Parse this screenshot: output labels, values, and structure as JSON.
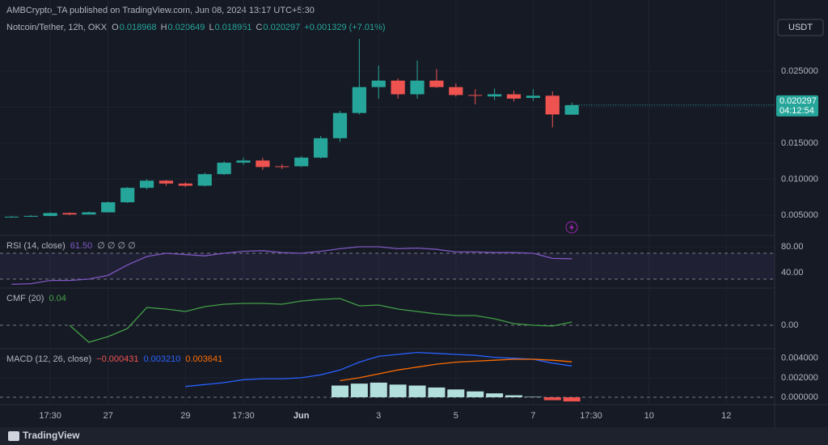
{
  "header": {
    "publisher": "AMBCrypto_TA published on TradingView.com, Jun 08, 2024 13:17 UTC+5:30",
    "symbol": "Notcoin/Tether, 12h, OKX",
    "ohlc_legend": [
      {
        "label": "O",
        "value": "0.018968"
      },
      {
        "label": "H",
        "value": "0.020649"
      },
      {
        "label": "L",
        "value": "0.018951"
      },
      {
        "label": "C",
        "value": "0.020297"
      }
    ],
    "change": "+0.001329 (+7.01%)",
    "currency": "USDT",
    "brand": "TradingView"
  },
  "chart_data": [
    {
      "type": "candlestick",
      "up_color": "#26a69a",
      "down_color": "#ef5350",
      "last_price_label": "0.020297",
      "countdown": "04:12:54",
      "xlim": [
        -0.6,
        39.5
      ],
      "xticks": [
        {
          "value": 2,
          "label": "17:30"
        },
        {
          "value": 5,
          "label": "27"
        },
        {
          "value": 9,
          "label": "29"
        },
        {
          "value": 12,
          "label": "17:30"
        },
        {
          "value": 15,
          "label": "Jun"
        },
        {
          "value": 19,
          "label": "3"
        },
        {
          "value": 23,
          "label": "5"
        },
        {
          "value": 27,
          "label": "7"
        },
        {
          "value": 30,
          "label": "17:30"
        },
        {
          "value": 33,
          "label": "10"
        },
        {
          "value": 37,
          "label": "12"
        }
      ],
      "ylim": [
        0.0023,
        0.0349
      ],
      "yticks": [
        {
          "value": 0.005,
          "label": "0.005000"
        },
        {
          "value": 0.01,
          "label": "0.010000"
        },
        {
          "value": 0.015,
          "label": "0.015000"
        },
        {
          "value": 0.02,
          "label": "0.020000"
        },
        {
          "value": 0.025,
          "label": "0.025000"
        }
      ],
      "open": [
        0.00475,
        0.0048,
        0.0049,
        0.0053,
        0.0051,
        0.0054,
        0.0068,
        0.0088,
        0.0098,
        0.0094,
        0.0091,
        0.0107,
        0.0123,
        0.0126,
        0.0118,
        0.0118,
        0.013,
        0.0157,
        0.0192,
        0.0228,
        0.0237,
        0.0218,
        0.0237,
        0.0228,
        0.0217,
        0.0215,
        0.0218,
        0.0213,
        0.0216,
        0.018968
      ],
      "high": [
        0.0049,
        0.005,
        0.0054,
        0.0054,
        0.0055,
        0.0069,
        0.0089,
        0.01,
        0.0099,
        0.0096,
        0.0109,
        0.0125,
        0.013,
        0.013,
        0.0121,
        0.0132,
        0.016,
        0.0195,
        0.0295,
        0.0258,
        0.024,
        0.0265,
        0.0253,
        0.0233,
        0.0225,
        0.0226,
        0.0223,
        0.0225,
        0.0222,
        0.020649
      ],
      "low": [
        0.0047,
        0.0048,
        0.0049,
        0.005,
        0.0051,
        0.0054,
        0.0067,
        0.0086,
        0.0091,
        0.0089,
        0.009,
        0.0106,
        0.012,
        0.0113,
        0.0114,
        0.0117,
        0.0129,
        0.0152,
        0.019,
        0.0212,
        0.0212,
        0.0212,
        0.0227,
        0.0215,
        0.0204,
        0.021,
        0.0208,
        0.0209,
        0.0172,
        0.018951
      ],
      "close": [
        0.0048,
        0.0049,
        0.0053,
        0.0051,
        0.0054,
        0.0068,
        0.0088,
        0.0098,
        0.0094,
        0.0091,
        0.0107,
        0.0123,
        0.0126,
        0.0117,
        0.0117,
        0.013,
        0.0157,
        0.0192,
        0.0228,
        0.0237,
        0.0218,
        0.0237,
        0.0228,
        0.0217,
        0.0216,
        0.0218,
        0.0212,
        0.0216,
        0.019,
        0.020297
      ]
    },
    {
      "type": "line",
      "title": "RSI (14, close)",
      "legend_value": "61.50",
      "legend_extra": "∅ ∅ ∅ ∅",
      "ylim": [
        17.5,
        96.25
      ],
      "yticks": [
        {
          "value": 40,
          "label": "40.00"
        },
        {
          "value": 80,
          "label": "80.00"
        }
      ],
      "levels": [
        70,
        30
      ],
      "series": [
        {
          "name": "RSI",
          "color": "#7e57c2",
          "values": [
            22,
            23,
            28,
            28,
            30,
            36,
            52,
            65,
            70,
            68,
            66,
            70,
            73,
            74,
            71,
            70,
            73,
            77,
            80,
            80,
            77,
            78,
            76,
            72,
            72,
            71,
            71,
            70,
            62,
            61.5
          ]
        }
      ]
    },
    {
      "type": "line",
      "title": "CMF (20)",
      "legend_value": "0.04",
      "ylim": [
        -0.28,
        0.45
      ],
      "yticks": [
        {
          "value": 0,
          "label": "0.00"
        }
      ],
      "series": [
        {
          "name": "CMF",
          "color": "#43a047",
          "values": [
            null,
            null,
            null,
            0.0,
            -0.21,
            -0.14,
            -0.04,
            0.22,
            0.2,
            0.17,
            0.23,
            0.26,
            0.27,
            0.27,
            0.26,
            0.3,
            0.32,
            0.33,
            0.24,
            0.25,
            0.2,
            0.17,
            0.14,
            0.12,
            0.12,
            0.08,
            0.02,
            0.0,
            -0.01,
            0.04
          ]
        }
      ]
    },
    {
      "type": "macd",
      "title": "MACD (12, 26, close)",
      "legend_values": [
        "−0.000431",
        "0.003210",
        "0.003641"
      ],
      "ylim": [
        -0.00075,
        0.0049
      ],
      "yticks": [
        {
          "value": 0,
          "label": "0.000000"
        },
        {
          "value": 0.002,
          "label": "0.002000"
        },
        {
          "value": 0.004,
          "label": "0.004000"
        }
      ],
      "histogram": {
        "name": "Histogram",
        "color": "#b2dfdb",
        "negative_color": "#ef5350",
        "values": [
          null,
          null,
          null,
          null,
          null,
          null,
          null,
          null,
          null,
          null,
          null,
          null,
          null,
          null,
          null,
          null,
          null,
          0.0012,
          0.0014,
          0.0015,
          0.0013,
          0.0012,
          0.001,
          0.0008,
          0.0006,
          0.0004,
          0.0002,
          5e-05,
          -0.0003,
          -0.000431
        ]
      },
      "series": [
        {
          "name": "MACD",
          "color": "#2962ff",
          "values": [
            null,
            null,
            null,
            null,
            null,
            null,
            null,
            null,
            null,
            0.0011,
            0.0013,
            0.0015,
            0.0018,
            0.0019,
            0.0019,
            0.002,
            0.0023,
            0.0028,
            0.0036,
            0.0042,
            0.0044,
            0.0046,
            0.0045,
            0.0044,
            0.0043,
            0.0041,
            0.004,
            0.0039,
            0.0035,
            0.00321
          ]
        },
        {
          "name": "Signal",
          "color": "#ff6d00",
          "values": [
            null,
            null,
            null,
            null,
            null,
            null,
            null,
            null,
            null,
            null,
            null,
            null,
            null,
            null,
            null,
            null,
            null,
            0.0017,
            0.002,
            0.0024,
            0.0028,
            0.0031,
            0.0034,
            0.0036,
            0.0037,
            0.0038,
            0.0039,
            0.0039,
            0.0038,
            0.003641
          ]
        }
      ]
    }
  ]
}
